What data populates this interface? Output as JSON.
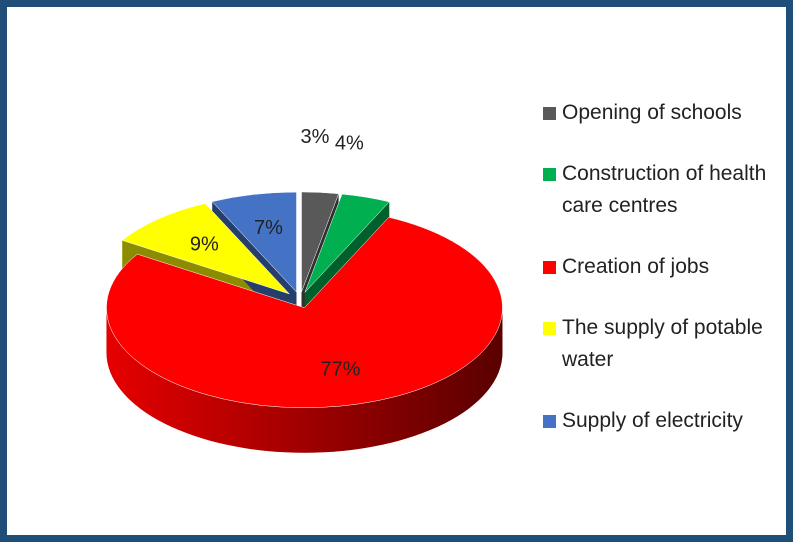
{
  "chart_data": {
    "type": "pie",
    "categories": [
      "Opening of schools",
      "Construction of health care centres",
      "Creation of jobs",
      "The supply of potable water",
      "Supply of electricity"
    ],
    "values": [
      3,
      4,
      77,
      9,
      7
    ],
    "value_labels": [
      "3%",
      "4%",
      "77%",
      "9%",
      "7%"
    ],
    "colors": [
      "#595959",
      "#00b050",
      "#ff0000",
      "#ffff00",
      "#4472c4"
    ]
  }
}
